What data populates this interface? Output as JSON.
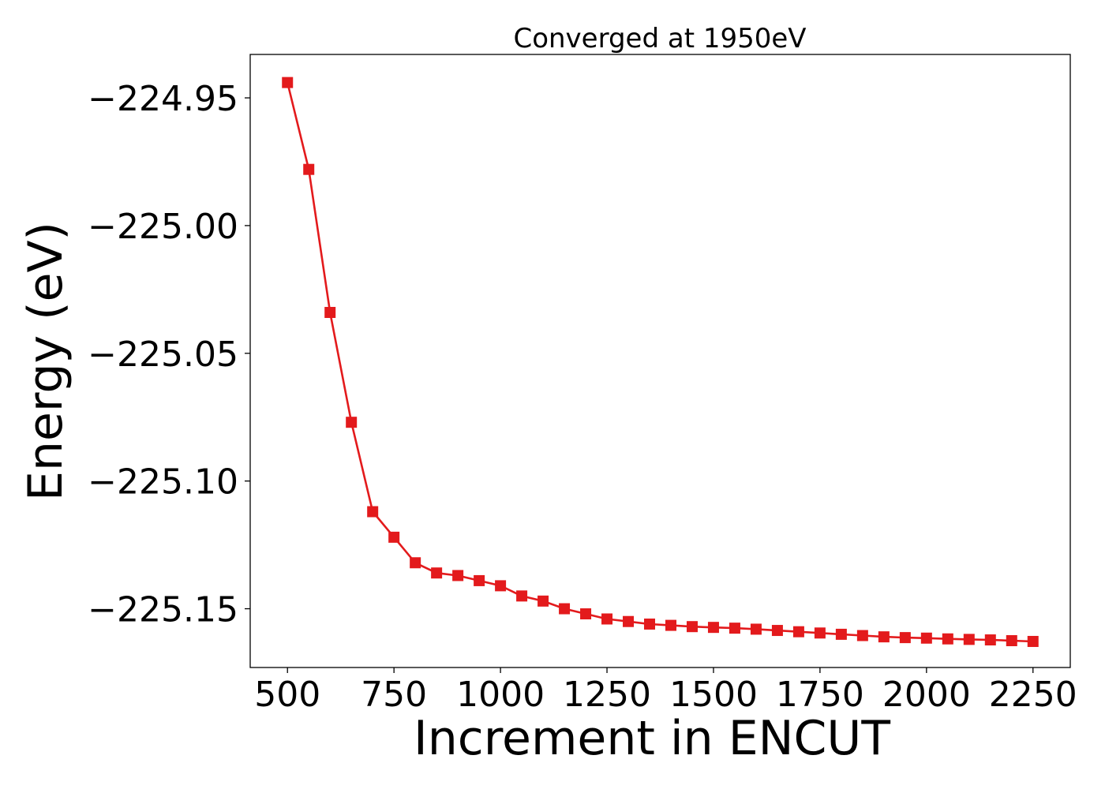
{
  "chart_data": {
    "type": "line",
    "title": "Converged at 1950eV",
    "xlabel": "Increment in ENCUT",
    "ylabel": "Energy (eV)",
    "xlim": [
      412.5,
      2337.5
    ],
    "ylim": [
      -225.173,
      -224.933
    ],
    "x_ticks": [
      500,
      750,
      1000,
      1250,
      1500,
      1750,
      2000,
      2250
    ],
    "x_tick_labels": [
      "500",
      "750",
      "1000",
      "1250",
      "1500",
      "1750",
      "2000",
      "2250"
    ],
    "y_ticks": [
      -224.95,
      -225.0,
      -225.05,
      -225.1,
      -225.15
    ],
    "y_tick_labels": [
      "−224.95",
      "−225.00",
      "−225.05",
      "−225.10",
      "−225.15"
    ],
    "grid": false,
    "series": [
      {
        "color": "#e31a1c",
        "marker": "square",
        "x": [
          500,
          550,
          600,
          650,
          700,
          750,
          800,
          850,
          900,
          950,
          1000,
          1050,
          1100,
          1150,
          1200,
          1250,
          1300,
          1350,
          1400,
          1450,
          1500,
          1550,
          1600,
          1650,
          1700,
          1750,
          1800,
          1850,
          1900,
          1950,
          2000,
          2050,
          2100,
          2150,
          2200,
          2250
        ],
        "y": [
          -224.944,
          -224.978,
          -225.034,
          -225.077,
          -225.112,
          -225.122,
          -225.132,
          -225.136,
          -225.137,
          -225.139,
          -225.141,
          -225.145,
          -225.147,
          -225.15,
          -225.152,
          -225.154,
          -225.155,
          -225.156,
          -225.1565,
          -225.157,
          -225.1573,
          -225.1576,
          -225.158,
          -225.1585,
          -225.159,
          -225.1595,
          -225.16,
          -225.1605,
          -225.161,
          -225.1613,
          -225.1615,
          -225.1618,
          -225.162,
          -225.1622,
          -225.1625,
          -225.1628
        ]
      }
    ]
  }
}
